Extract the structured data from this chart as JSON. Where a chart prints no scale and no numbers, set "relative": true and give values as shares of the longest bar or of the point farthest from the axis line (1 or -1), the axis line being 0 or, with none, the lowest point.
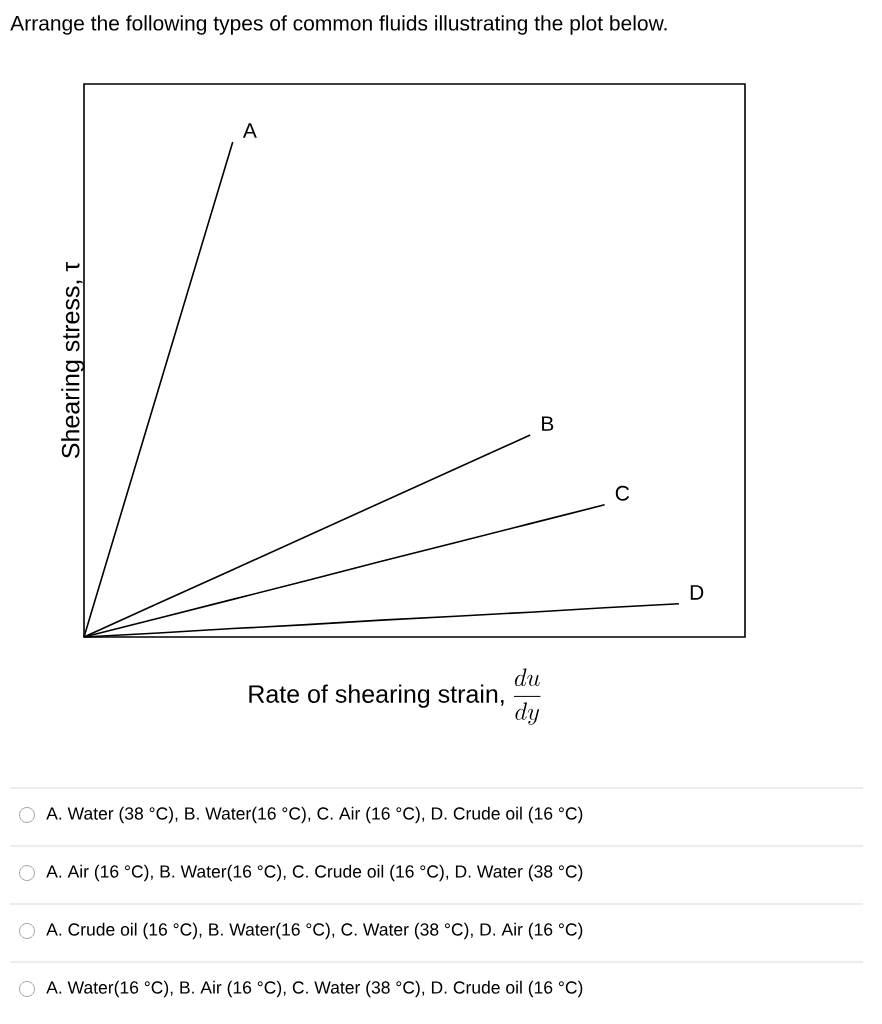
{
  "chart_data": {
    "type": "line",
    "relative": true,
    "title": "Arrange the following types of common fluids illustrating the plot below.",
    "xlabel": "\\text{Rate of shearing strain, }\\frac{du}{dy}",
    "ylabel": "Shearing stress, τ",
    "categories": [
      null,
      null,
      null,
      null,
      null,
      null,
      null,
      null,
      null
    ],
    "series": [
      {
        "name": "A",
        "color": "#000000",
        "values": [
          0,
          0.5,
          1,
          null,
          null,
          null,
          null,
          null,
          null
        ]
      },
      {
        "name": "B",
        "color": "#000000",
        "values": [
          0,
          0.068,
          0.136,
          0.204,
          0.272,
          0.34,
          0.408,
          null,
          null
        ]
      },
      {
        "name": "C",
        "color": "#000000",
        "values": [
          0,
          0.038,
          0.076,
          0.114,
          0.153,
          0.191,
          0.229,
          0.267,
          null
        ]
      },
      {
        "name": "D",
        "color": "#000000",
        "values": [
          0,
          0.008,
          0.017,
          0.025,
          0.034,
          0.042,
          0.05,
          0.059,
          0.067
        ]
      }
    ],
    "annotations": [
      "A. Water (38 °C), B. Water(16 °C), C. Air (16 °C), D. Crude oil (16 °C)",
      "A. Air (16 °C), B. Water(16 °C), C. Crude oil (16 °C), D. Water (38 °C)",
      "A. Crude oil (16 °C), B. Water(16 °C), C. Water (38 °C), D. Air (16 °C)",
      "A. Water(16 °C), B. Air (16 °C), C. Water (38 °C), D. Crude oil (16 °C)"
    ]
  }
}
